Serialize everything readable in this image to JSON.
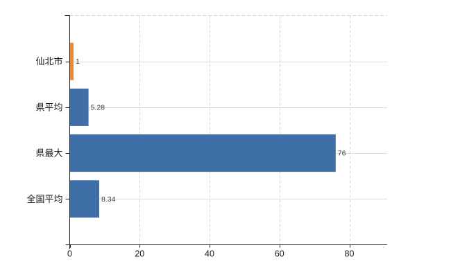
{
  "chart_data": {
    "type": "bar",
    "orientation": "horizontal",
    "title": "",
    "xlabel": "",
    "ylabel": "",
    "legend": false,
    "grid": true,
    "categories": [
      "仙北市",
      "県平均",
      "県最大",
      "全国平均"
    ],
    "values": [
      1,
      5.28,
      76,
      8.34
    ],
    "value_labels": [
      "1",
      "5.28",
      "76",
      "8.34"
    ],
    "bar_colors": [
      "#EE8B31",
      "#3E6FA6",
      "#3E6FA6",
      "#3E6FA6"
    ],
    "x_ticks": [
      0,
      20,
      40,
      60,
      80
    ],
    "x_tick_labels": [
      "0",
      "20",
      "40",
      "60",
      "80"
    ],
    "xlim": [
      0,
      91
    ],
    "colors": {
      "bar_blue": "#3E6FA6",
      "bar_orange": "#EE8B31",
      "gridline_h": "#D9DDD4",
      "gridline_v": "#D7D6D0",
      "top_border": "#D3CFCC",
      "axis": "#1A1A1A",
      "tick_label": "#1A1A1A",
      "value_label": "#3C3C3C",
      "background": "#FFFFFF"
    }
  }
}
